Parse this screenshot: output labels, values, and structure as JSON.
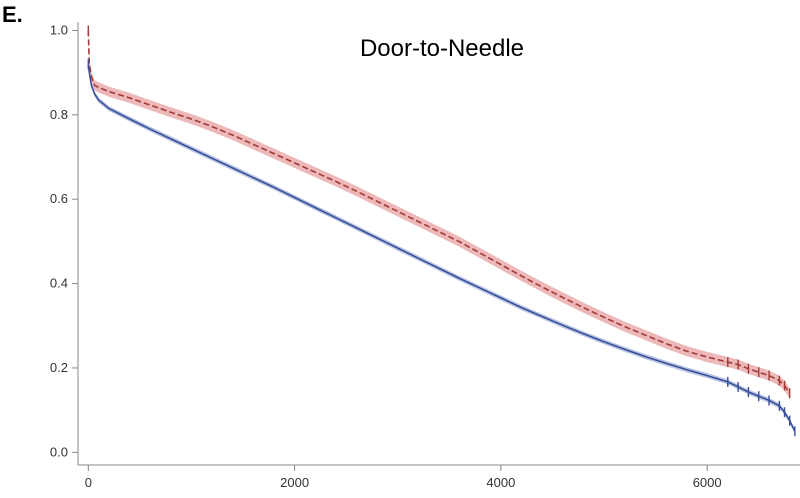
{
  "panel_label": "E.",
  "chart_data": {
    "type": "line",
    "title": "Door-to-Needle",
    "xlabel": "",
    "ylabel": "",
    "xlim": [
      -100,
      6900
    ],
    "ylim": [
      -0.03,
      1.02
    ],
    "x_ticks": [
      0,
      2000,
      4000,
      6000
    ],
    "x_tick_labels": [
      "0",
      "2000",
      "4000",
      "6000"
    ],
    "y_ticks": [
      0.0,
      0.2,
      0.4,
      0.6,
      0.8,
      1.0
    ],
    "y_tick_labels": [
      "0.0",
      "0.2",
      "0.4",
      "0.6",
      "0.8",
      "1.0"
    ],
    "grid": false,
    "legend": "none",
    "series": [
      {
        "color": "#a33a3a",
        "band_color": "#e9a6a6",
        "style": "dashed",
        "band_halfwidth": 0.012,
        "x": [
          0,
          10,
          30,
          60,
          100,
          200,
          400,
          600,
          800,
          1000,
          1200,
          1400,
          1600,
          1800,
          2000,
          2200,
          2400,
          2600,
          2800,
          3000,
          3200,
          3400,
          3600,
          3800,
          4000,
          4200,
          4400,
          4600,
          4800,
          5000,
          5200,
          5400,
          5600,
          5800,
          6000,
          6200,
          6300,
          6400,
          6500,
          6600,
          6700,
          6750,
          6800
        ],
        "y": [
          1.0,
          0.92,
          0.89,
          0.87,
          0.865,
          0.855,
          0.84,
          0.823,
          0.806,
          0.79,
          0.772,
          0.752,
          0.73,
          0.708,
          0.686,
          0.664,
          0.642,
          0.619,
          0.595,
          0.571,
          0.547,
          0.523,
          0.499,
          0.472,
          0.445,
          0.418,
          0.392,
          0.367,
          0.343,
          0.32,
          0.298,
          0.278,
          0.258,
          0.24,
          0.226,
          0.214,
          0.208,
          0.198,
          0.19,
          0.182,
          0.17,
          0.158,
          0.14
        ]
      },
      {
        "color": "#3a4f9a",
        "band_color": "#a9b6dc",
        "style": "solid",
        "band_halfwidth": 0.006,
        "x": [
          0,
          10,
          30,
          60,
          100,
          200,
          400,
          600,
          800,
          1000,
          1200,
          1400,
          1600,
          1800,
          2000,
          2200,
          2400,
          2600,
          2800,
          3000,
          3200,
          3400,
          3600,
          3800,
          4000,
          4200,
          4400,
          4600,
          4800,
          5000,
          5200,
          5400,
          5600,
          5800,
          6000,
          6200,
          6300,
          6400,
          6500,
          6600,
          6700,
          6750,
          6800,
          6850
        ],
        "y": [
          0.92,
          0.9,
          0.87,
          0.85,
          0.835,
          0.815,
          0.79,
          0.766,
          0.743,
          0.72,
          0.697,
          0.674,
          0.651,
          0.628,
          0.604,
          0.58,
          0.556,
          0.532,
          0.508,
          0.484,
          0.46,
          0.436,
          0.412,
          0.389,
          0.366,
          0.343,
          0.322,
          0.301,
          0.281,
          0.262,
          0.244,
          0.227,
          0.211,
          0.196,
          0.182,
          0.167,
          0.155,
          0.143,
          0.133,
          0.123,
          0.11,
          0.095,
          0.075,
          0.05
        ]
      }
    ]
  }
}
